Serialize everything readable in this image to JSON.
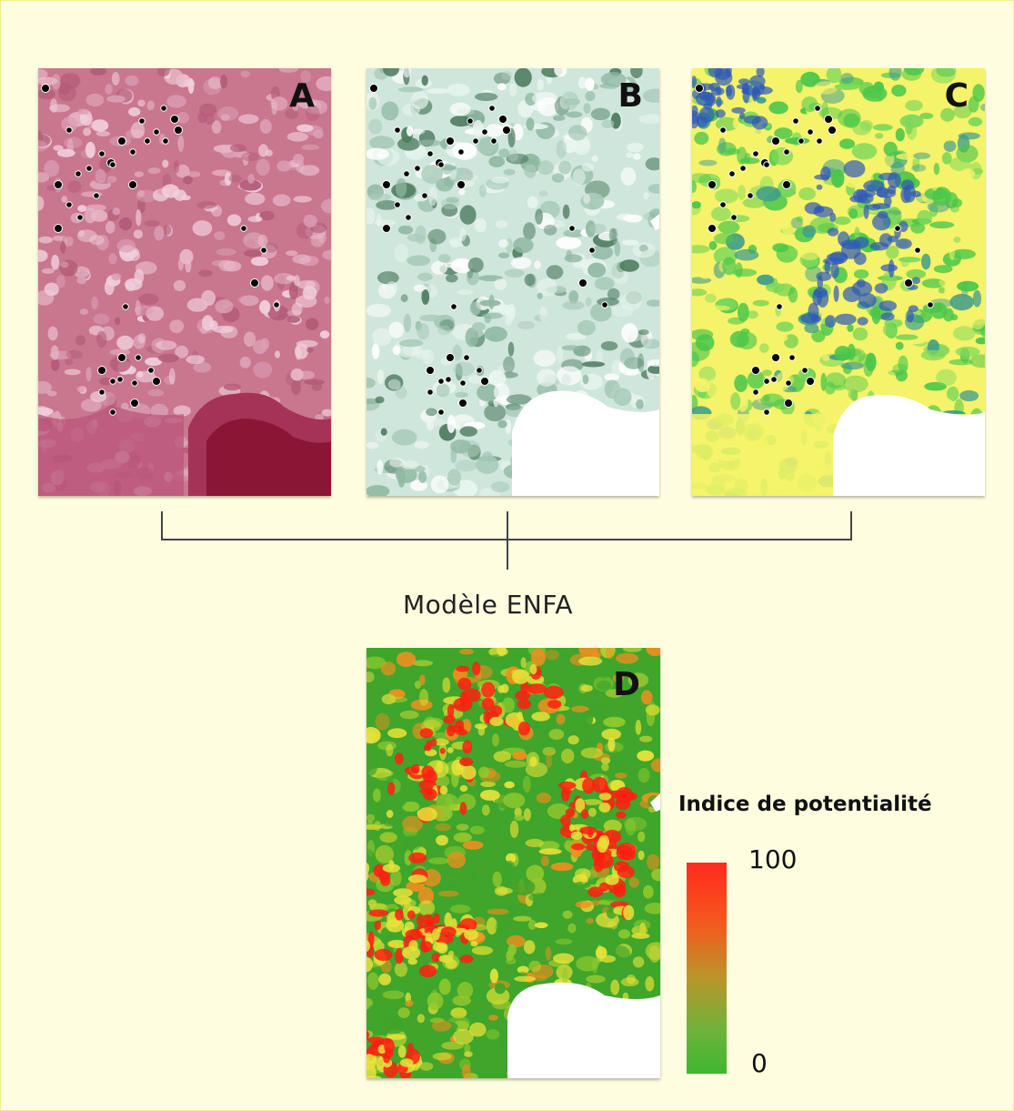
{
  "panels": [
    {
      "label": "A",
      "theme": "pink",
      "colors": {
        "base": "#c9768f",
        "light": "#f1cfdc",
        "mid": "#b35b78",
        "dark": "#8b1535",
        "sea": "#a53358"
      }
    },
    {
      "label": "B",
      "theme": "green",
      "colors": {
        "base": "#cfe6dc",
        "light": "#e8f5ef",
        "mid": "#8fb8a2",
        "dark": "#4e7c60"
      }
    },
    {
      "label": "C",
      "theme": "yellow-green-blue",
      "colors": {
        "base": "#f4f36a",
        "green": "#49c64a",
        "teal": "#3f9c8b",
        "blue": "#2d58b8"
      }
    }
  ],
  "model_label": "Modèle ENFA",
  "result_panel": {
    "label": "D",
    "colors": {
      "green": "#3fa52b",
      "yellow": "#e8e33a",
      "red": "#ff1e12"
    }
  },
  "legend": {
    "title": "Indice de potentialité",
    "max_label": "100",
    "min_label": "0",
    "gradient": [
      "#ff2a1e",
      "#f5571e",
      "#b8962a",
      "#6cb43a",
      "#3fb62f"
    ]
  }
}
